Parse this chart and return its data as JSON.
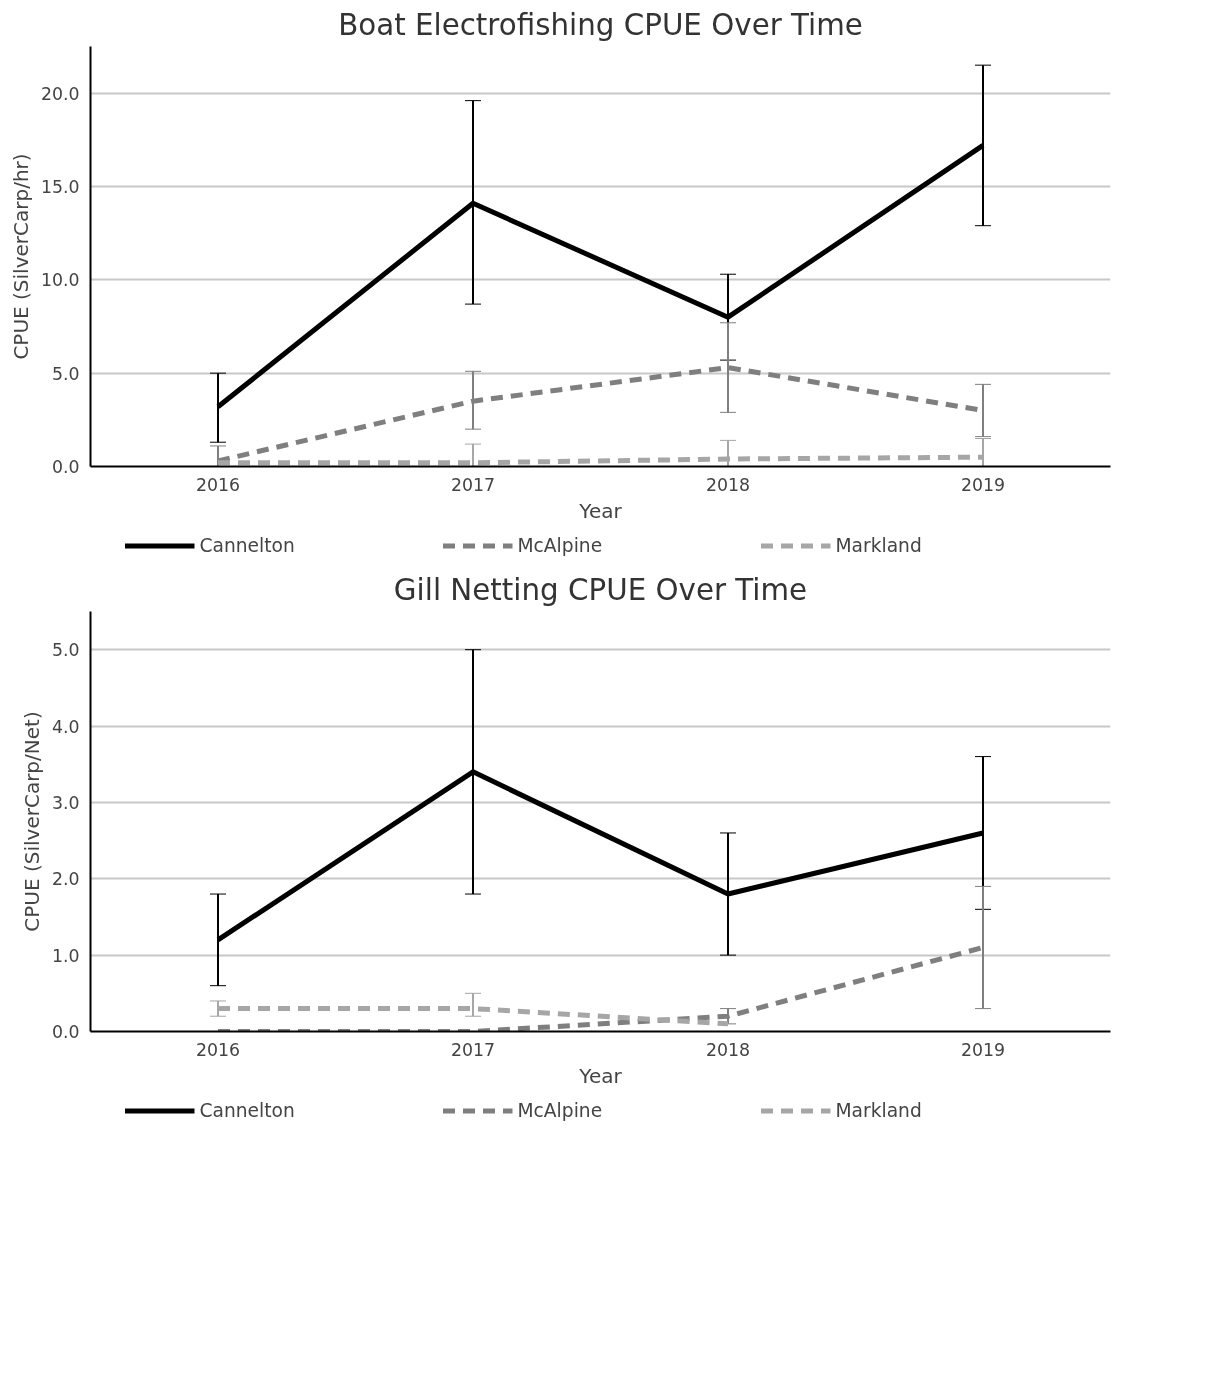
{
  "chart_data": [
    {
      "type": "line",
      "title": "Boat Electrofishing CPUE Over Time",
      "xlabel": "Year",
      "ylabel": "CPUE (SilverCarp/hr)",
      "categories": [
        "2016",
        "2017",
        "2018",
        "2019"
      ],
      "ylim": [
        0,
        22.5
      ],
      "yticks": [
        {
          "value": 0,
          "label": "0.0"
        },
        {
          "value": 5,
          "label": "5.0"
        },
        {
          "value": 10,
          "label": "10.0"
        },
        {
          "value": 15,
          "label": "15.0"
        },
        {
          "value": 20,
          "label": "20.0"
        }
      ],
      "grid": "y",
      "legend": "bottom",
      "marker": "none",
      "series": [
        {
          "name": "Cannelton",
          "color": "#000000",
          "line_style": "solid",
          "values": [
            3.2,
            14.1,
            8.0,
            17.2
          ],
          "errors": [
            [
              1.3,
              5.0
            ],
            [
              8.7,
              19.6
            ],
            [
              5.7,
              10.3
            ],
            [
              12.9,
              21.5
            ]
          ]
        },
        {
          "name": "McAlpine",
          "color": "#7f7f7f",
          "line_style": "dashed",
          "values": [
            0.3,
            3.5,
            5.3,
            3.0
          ],
          "errors": [
            [
              0,
              1.1
            ],
            [
              2.0,
              5.1
            ],
            [
              2.9,
              7.7
            ],
            [
              1.6,
              4.4
            ]
          ]
        },
        {
          "name": "Markland",
          "color": "#a6a6a6",
          "line_style": "dashed",
          "values": [
            0.2,
            0.2,
            0.4,
            0.5
          ],
          "errors": [
            null,
            [
              0,
              1.2
            ],
            [
              0,
              1.4
            ],
            [
              0,
              1.5
            ]
          ]
        }
      ]
    },
    {
      "type": "line",
      "title": "Gill Netting CPUE Over Time",
      "xlabel": "Year",
      "ylabel": "CPUE (SilverCarp/Net)",
      "categories": [
        "2016",
        "2017",
        "2018",
        "2019"
      ],
      "ylim": [
        0,
        5.5
      ],
      "yticks": [
        {
          "value": 0,
          "label": "0.0"
        },
        {
          "value": 1,
          "label": "1.0"
        },
        {
          "value": 2,
          "label": "2.0"
        },
        {
          "value": 3,
          "label": "3.0"
        },
        {
          "value": 4,
          "label": "4.0"
        },
        {
          "value": 5,
          "label": "5.0"
        }
      ],
      "grid": "y",
      "legend": "bottom",
      "marker": "none",
      "series": [
        {
          "name": "Cannelton",
          "color": "#000000",
          "line_style": "solid",
          "values": [
            1.2,
            3.4,
            1.8,
            2.6
          ],
          "errors": [
            [
              0.6,
              1.8
            ],
            [
              1.8,
              5.0
            ],
            [
              1.0,
              2.6
            ],
            [
              1.6,
              3.6
            ]
          ]
        },
        {
          "name": "McAlpine",
          "color": "#7f7f7f",
          "line_style": "dashed",
          "values": [
            0.0,
            0.0,
            0.2,
            1.1
          ],
          "errors": [
            null,
            null,
            [
              0.1,
              0.3
            ],
            [
              0.3,
              1.9
            ]
          ]
        },
        {
          "name": "Markland",
          "color": "#a6a6a6",
          "line_style": "dashed",
          "values": [
            0.3,
            0.3,
            0.1,
            null
          ],
          "errors": [
            [
              0.2,
              0.4
            ],
            [
              0.2,
              0.5
            ],
            null,
            null
          ]
        }
      ]
    }
  ]
}
